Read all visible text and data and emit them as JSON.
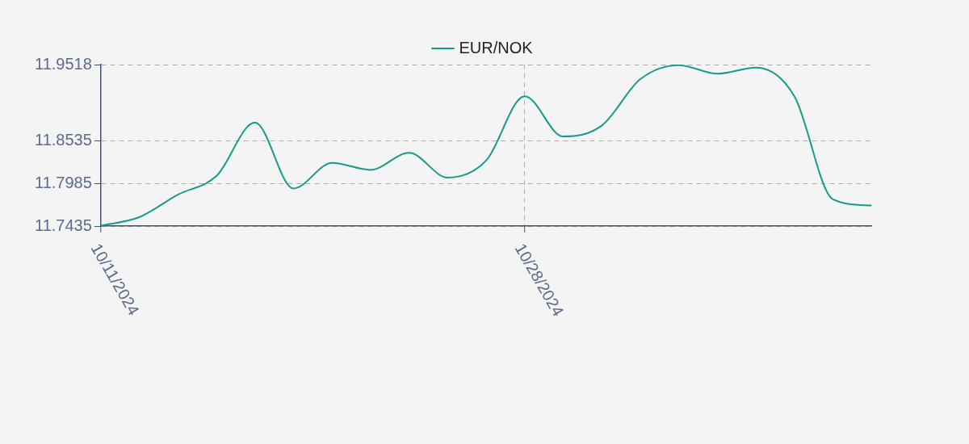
{
  "chart_data": {
    "type": "line",
    "categories": [
      "10/11/2024",
      null,
      null,
      null,
      null,
      null,
      null,
      null,
      null,
      null,
      null,
      "10/28/2024",
      null,
      null,
      null,
      null,
      null,
      null,
      null,
      null,
      null
    ],
    "series": [
      {
        "name": "EUR/NOK",
        "color": "#149c8a",
        "values": [
          11.744,
          11.755,
          11.784,
          11.808,
          11.877,
          11.792,
          11.825,
          11.816,
          11.838,
          11.806,
          11.828,
          11.911,
          11.859,
          11.873,
          11.933,
          11.951,
          11.94,
          11.948,
          11.911,
          11.778,
          11.77
        ]
      }
    ],
    "ylim": [
      11.7435,
      11.9518
    ],
    "yticks": [
      11.7435,
      11.7985,
      11.8535,
      11.9518
    ],
    "grid": true,
    "legend": "top",
    "marker": "none",
    "line_style": "solid"
  }
}
